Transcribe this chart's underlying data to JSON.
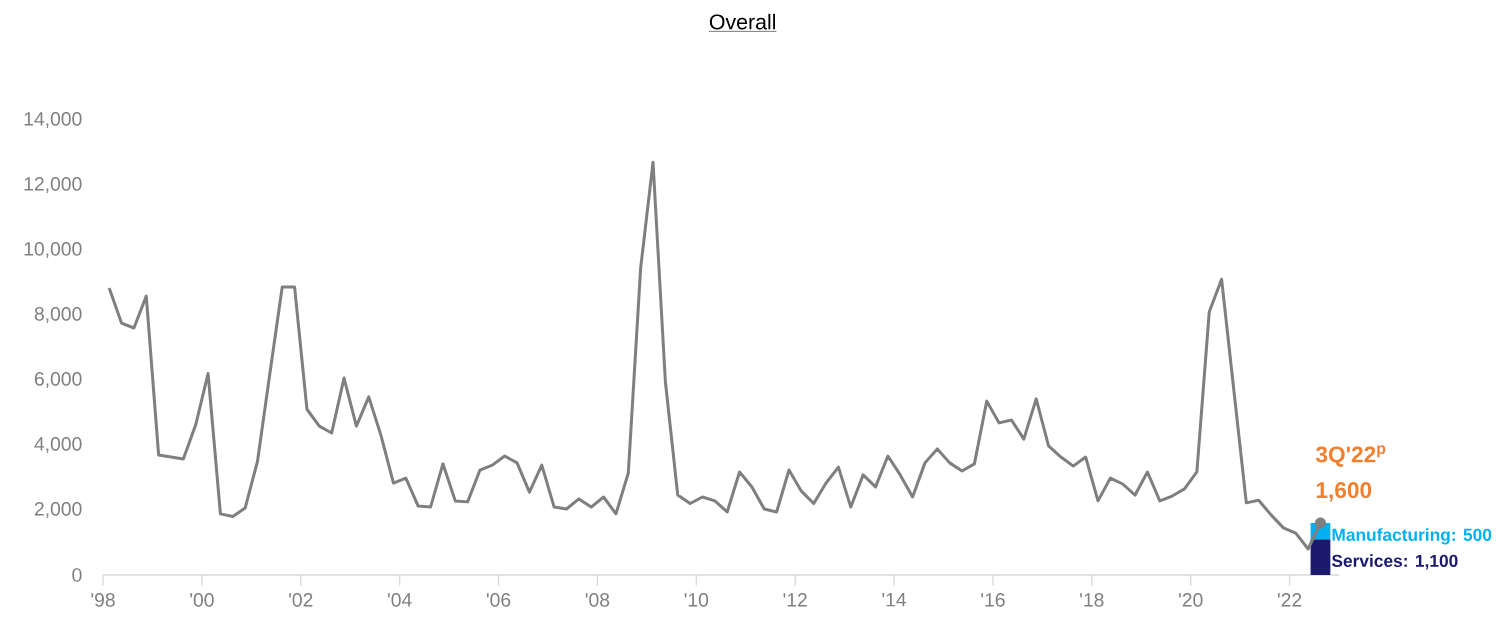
{
  "chart_data": {
    "type": "line",
    "title": "Overall",
    "stacked": true,
    "x": [
      1998.125,
      1998.375,
      1998.625,
      1998.875,
      1999.125,
      1999.375,
      1999.625,
      1999.875,
      2000.125,
      2000.375,
      2000.625,
      2000.875,
      2001.125,
      2001.375,
      2001.625,
      2001.875,
      2002.125,
      2002.375,
      2002.625,
      2002.875,
      2003.125,
      2003.375,
      2003.625,
      2003.875,
      2004.125,
      2004.375,
      2004.625,
      2004.875,
      2005.125,
      2005.375,
      2005.625,
      2005.875,
      2006.125,
      2006.375,
      2006.625,
      2006.875,
      2007.125,
      2007.375,
      2007.625,
      2007.875,
      2008.125,
      2008.375,
      2008.625,
      2008.875,
      2009.125,
      2009.375,
      2009.625,
      2009.875,
      2010.125,
      2010.375,
      2010.625,
      2010.875,
      2011.125,
      2011.375,
      2011.625,
      2011.875,
      2012.125,
      2012.375,
      2012.625,
      2012.875,
      2013.125,
      2013.375,
      2013.625,
      2013.875,
      2014.125,
      2014.375,
      2014.625,
      2014.875,
      2015.125,
      2015.375,
      2015.625,
      2015.875,
      2016.125,
      2016.375,
      2016.625,
      2016.875,
      2017.125,
      2017.375,
      2017.625,
      2017.875,
      2018.125,
      2018.375,
      2018.625,
      2018.875,
      2019.125,
      2019.375,
      2019.625,
      2019.875,
      2020.125,
      2020.375,
      2020.625,
      2020.875,
      2021.125,
      2021.375,
      2021.625,
      2021.875,
      2022.125,
      2022.375,
      2022.625
    ],
    "xlim": [
      1998,
      2023
    ],
    "xticks": [
      {
        "value": 1998,
        "label": "'98"
      },
      {
        "value": 2000,
        "label": "'00"
      },
      {
        "value": 2002,
        "label": "'02"
      },
      {
        "value": 2004,
        "label": "'04"
      },
      {
        "value": 2006,
        "label": "'06"
      },
      {
        "value": 2008,
        "label": "'08"
      },
      {
        "value": 2010,
        "label": "'10"
      },
      {
        "value": 2012,
        "label": "'12"
      },
      {
        "value": 2014,
        "label": "'14"
      },
      {
        "value": 2016,
        "label": "'16"
      },
      {
        "value": 2018,
        "label": "'18"
      },
      {
        "value": 2020,
        "label": "'20"
      },
      {
        "value": 2022,
        "label": "'22"
      }
    ],
    "ylim": [
      0,
      14000
    ],
    "yticks": [
      0,
      {
        "value": 2000,
        "label": "2,000"
      },
      {
        "value": 4000,
        "label": "4,000"
      },
      {
        "value": 6000,
        "label": "6,000"
      },
      {
        "value": 8000,
        "label": "8,000"
      },
      {
        "value": 10000,
        "label": "10,000"
      },
      {
        "value": 12000,
        "label": "12,000"
      },
      {
        "value": 14000,
        "label": "14,000"
      }
    ],
    "series": [
      {
        "type": "bar",
        "color": "#1b1a6e",
        "values": [
          null,
          null,
          null,
          null,
          null,
          null,
          null,
          null,
          null,
          null,
          null,
          null,
          null,
          null,
          null,
          null,
          null,
          null,
          null,
          null,
          null,
          null,
          null,
          null,
          null,
          null,
          null,
          null,
          null,
          null,
          null,
          null,
          null,
          null,
          null,
          null,
          null,
          null,
          null,
          null,
          null,
          null,
          null,
          null,
          null,
          null,
          null,
          null,
          null,
          null,
          null,
          null,
          null,
          null,
          null,
          null,
          null,
          null,
          null,
          null,
          null,
          null,
          null,
          null,
          null,
          null,
          null,
          null,
          null,
          null,
          null,
          null,
          null,
          null,
          null,
          null,
          null,
          null,
          null,
          null,
          null,
          null,
          null,
          null,
          null,
          null,
          null,
          null,
          null,
          null,
          null,
          null,
          null,
          null,
          null,
          null,
          null,
          null,
          1100
        ]
      },
      {
        "type": "bar",
        "color": "#00b0f0",
        "values": [
          null,
          null,
          null,
          null,
          null,
          null,
          null,
          null,
          null,
          null,
          null,
          null,
          null,
          null,
          null,
          null,
          null,
          null,
          null,
          null,
          null,
          null,
          null,
          null,
          null,
          null,
          null,
          null,
          null,
          null,
          null,
          null,
          null,
          null,
          null,
          null,
          null,
          null,
          null,
          null,
          null,
          null,
          null,
          null,
          null,
          null,
          null,
          null,
          null,
          null,
          null,
          null,
          null,
          null,
          null,
          null,
          null,
          null,
          null,
          null,
          null,
          null,
          null,
          null,
          null,
          null,
          null,
          null,
          null,
          null,
          null,
          null,
          null,
          null,
          null,
          null,
          null,
          null,
          null,
          null,
          null,
          null,
          null,
          null,
          null,
          null,
          null,
          null,
          null,
          null,
          null,
          null,
          null,
          null,
          null,
          null,
          null,
          null,
          500
        ]
      },
      {
        "color": "#7f7f7f",
        "values": [
          8830,
          7750,
          7600,
          8580,
          3690,
          3630,
          3570,
          4620,
          6200,
          1880,
          1800,
          2060,
          3500,
          6200,
          8860,
          8860,
          5100,
          4580,
          4370,
          6060,
          4580,
          5480,
          4280,
          2830,
          2980,
          2120,
          2090,
          3420,
          2280,
          2250,
          3230,
          3380,
          3660,
          3450,
          2550,
          3380,
          2090,
          2030,
          2340,
          2090,
          2400,
          1880,
          3140,
          9450,
          12700,
          5940,
          2460,
          2200,
          2400,
          2280,
          1940,
          3170,
          2710,
          2030,
          1940,
          3230,
          2580,
          2200,
          2830,
          3320,
          2090,
          3080,
          2710,
          3660,
          3080,
          2400,
          3450,
          3880,
          3450,
          3200,
          3420,
          5350,
          4680,
          4770,
          4180,
          5420,
          3970,
          3630,
          3350,
          3630,
          2280,
          2980,
          2800,
          2460,
          3170,
          2280,
          2430,
          2650,
          3170,
          8090,
          9100,
          5660,
          2220,
          2300,
          1850,
          1450,
          1290,
          800,
          1600
        ]
      },
      {
        "type": "scatter",
        "color": "#7f7f7f",
        "marker": "circle",
        "values": [
          null,
          null,
          null,
          null,
          null,
          null,
          null,
          null,
          null,
          null,
          null,
          null,
          null,
          null,
          null,
          null,
          null,
          null,
          null,
          null,
          null,
          null,
          null,
          null,
          null,
          null,
          null,
          null,
          null,
          null,
          null,
          null,
          null,
          null,
          null,
          null,
          null,
          null,
          null,
          null,
          null,
          null,
          null,
          null,
          null,
          null,
          null,
          null,
          null,
          null,
          null,
          null,
          null,
          null,
          null,
          null,
          null,
          null,
          null,
          null,
          null,
          null,
          null,
          null,
          null,
          null,
          null,
          null,
          null,
          null,
          null,
          null,
          null,
          null,
          null,
          null,
          null,
          null,
          null,
          null,
          null,
          null,
          null,
          null,
          null,
          null,
          null,
          null,
          null,
          null,
          null,
          null,
          null,
          null,
          null,
          null,
          null,
          null,
          1600
        ]
      }
    ],
    "annotations": [
      {
        "text": "3Q'22$^{p}$",
        "x": 2022.625,
        "y": 1600
      },
      {
        "text": "1,600",
        "x": 2022.625,
        "y": 1600
      },
      "Manufacturing: 500",
      "Services: 1,100"
    ]
  }
}
